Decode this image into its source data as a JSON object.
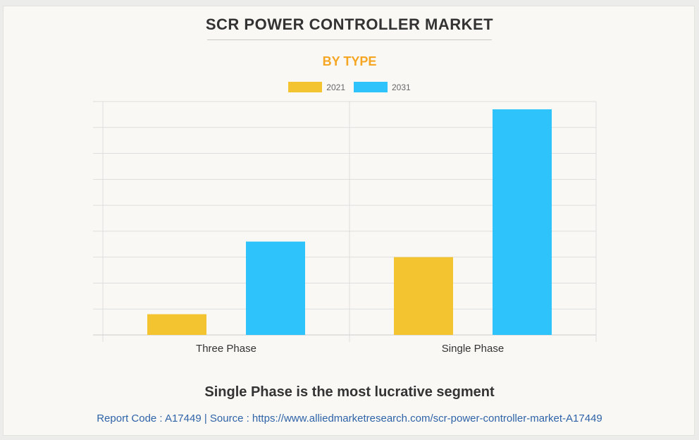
{
  "header": {
    "title": "SCR POWER CONTROLLER MARKET",
    "subtitle": "BY TYPE"
  },
  "colors": {
    "series_2021": "#f4c430",
    "series_2031": "#2ec4fb",
    "subtitle": "#f5a623",
    "grid": "#dedede",
    "axis_text": "#333333"
  },
  "chart_data": {
    "type": "bar",
    "categories": [
      "Three Phase",
      "Single Phase"
    ],
    "series": [
      {
        "name": "2021",
        "values": [
          8,
          30
        ]
      },
      {
        "name": "2031",
        "values": [
          36,
          87
        ]
      }
    ],
    "xlabel": "",
    "ylabel": "",
    "ylim": [
      0,
      90
    ],
    "y_ticks_shown": false,
    "grid": true,
    "legend_position": "top-center"
  },
  "footer": {
    "tagline": "Single Phase is the most lucrative segment",
    "source": "Report Code : A17449  |  Source : https://www.alliedmarketresearch.com/scr-power-controller-market-A17449"
  }
}
